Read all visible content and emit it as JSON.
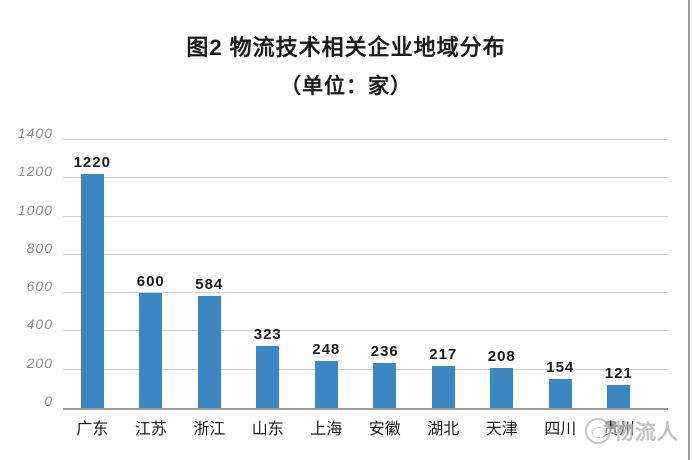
{
  "title": {
    "line1": "图2 物流技术相关企业地域分布",
    "line2": "（单位：家）"
  },
  "chart_data": {
    "type": "bar",
    "title": "图2 物流技术相关企业地域分布（单位：家）",
    "categories": [
      "广东",
      "江苏",
      "浙江",
      "山东",
      "上海",
      "安徽",
      "湖北",
      "天津",
      "四川",
      "贵州"
    ],
    "values": [
      1220,
      600,
      584,
      323,
      248,
      236,
      217,
      208,
      154,
      121
    ],
    "xlabel": "",
    "ylabel": "",
    "ylim": [
      0,
      1400
    ],
    "ytick_interval": 200,
    "yticks": [
      0,
      200,
      400,
      600,
      800,
      1000,
      1200,
      1400
    ],
    "grid": true,
    "legend": "none",
    "bar_color": "#3c86c4",
    "value_labels_shown": true
  },
  "watermark": {
    "logo_icon": "circle-logo",
    "text": "物流人"
  },
  "colors": {
    "bar": "#3c86c4",
    "gridline": "#cecece",
    "axis_line": "#9b9b9b",
    "y_tick_text": "#8c8c8c",
    "text": "#1b1b1b",
    "watermark": "#aeaeae"
  }
}
